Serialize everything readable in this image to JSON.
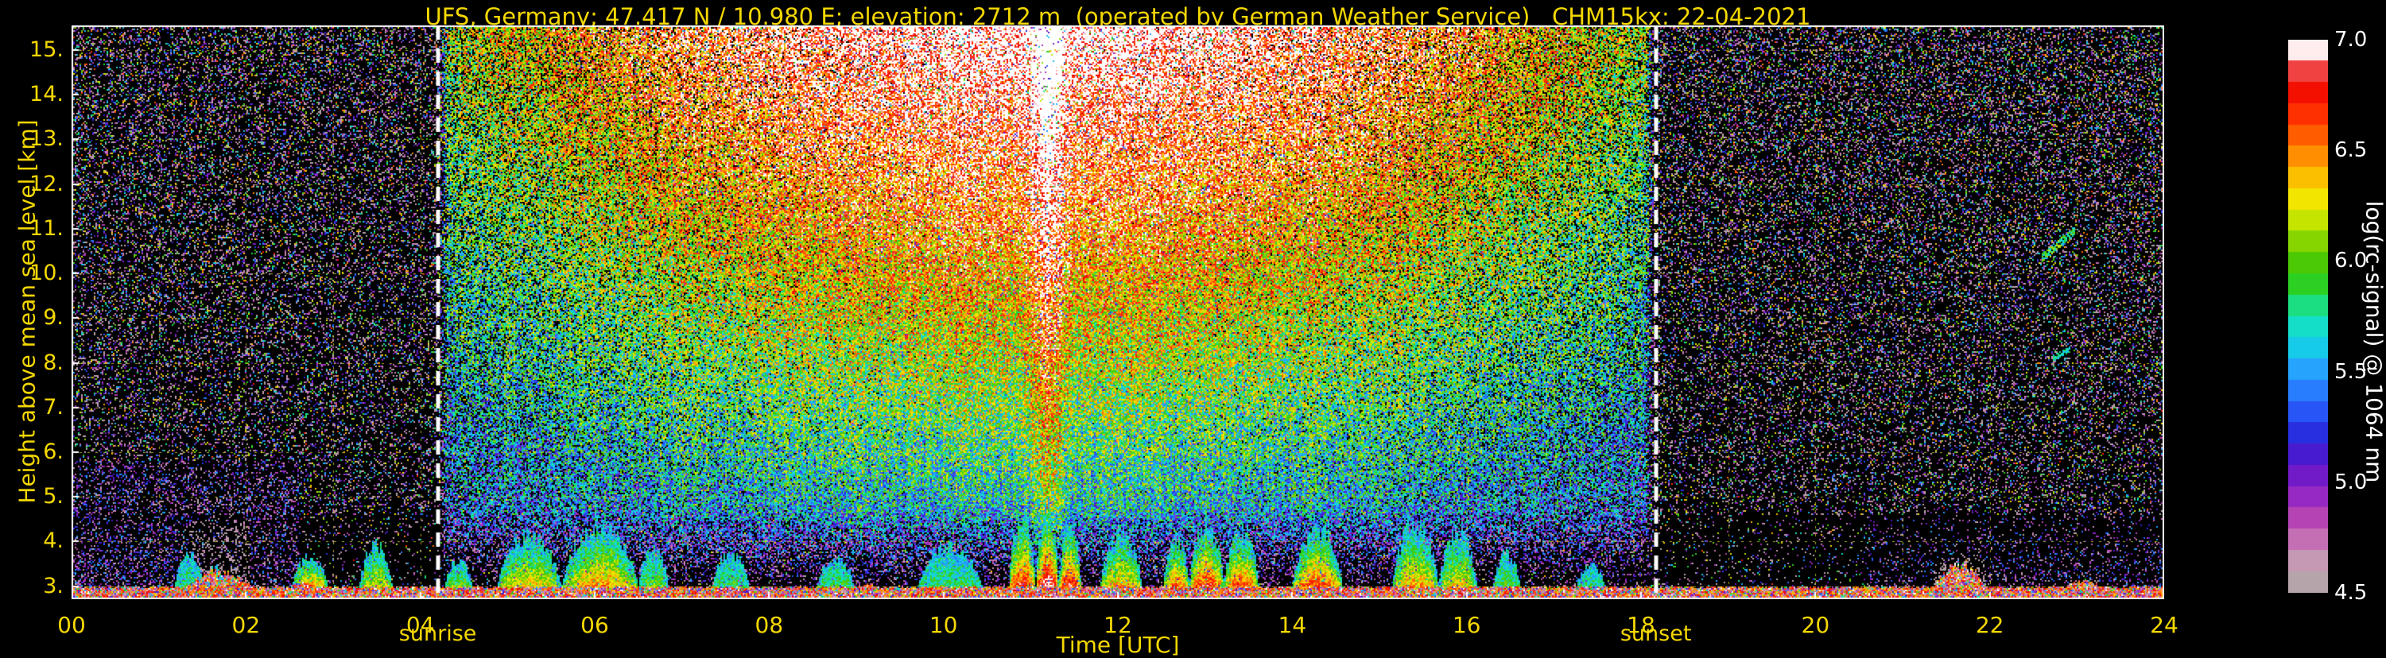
{
  "title": "UFS, Germany; 47.417 N / 10.980 E; elevation: 2712 m  (operated by German Weather Service)   CHM15kx: 22-04-2021",
  "colors": {
    "background": "#000000",
    "axis_text": "#f5d800",
    "grid": "#c9c91f",
    "frame": "#ffffff",
    "sun_line": "#ffffff",
    "colorbar_text": "#ffffff"
  },
  "plot": {
    "x_axis": {
      "label": "Time [UTC]",
      "ticks": [
        "00",
        "02",
        "04",
        "06",
        "08",
        "10",
        "12",
        "14",
        "16",
        "18",
        "20",
        "22",
        "24"
      ],
      "tick_hours": [
        0,
        2,
        4,
        6,
        8,
        10,
        12,
        14,
        16,
        18,
        20,
        22,
        24
      ],
      "range": [
        0,
        24
      ]
    },
    "y_axis": {
      "label": "Height above mean sea level [km]",
      "ticks": [
        "15.",
        "14.",
        "13.",
        "12.",
        "11.",
        "10.",
        "9.",
        "8.",
        "7.",
        "6.",
        "5.",
        "4.",
        "3."
      ],
      "tick_values": [
        15,
        14,
        13,
        12,
        11,
        10,
        9,
        8,
        7,
        6,
        5,
        4,
        3
      ],
      "range": [
        2.71,
        15.55
      ]
    },
    "sunrise": {
      "label": "sunrise",
      "hour": 4.2
    },
    "sunset": {
      "label": "sunset",
      "hour": 18.17
    }
  },
  "colorbar": {
    "label": "log(rc-signal) @ 1064 nm",
    "ticks": [
      "7.0",
      "6.5",
      "6.0",
      "5.5",
      "5.0",
      "4.5"
    ],
    "tick_values": [
      7.0,
      6.5,
      6.0,
      5.5,
      5.0,
      4.5
    ],
    "range": [
      4.5,
      7.0
    ],
    "stops": [
      [
        4.5,
        "#aaa2a2"
      ],
      [
        4.6,
        "#c4a8b4"
      ],
      [
        4.72,
        "#c878b4"
      ],
      [
        4.85,
        "#b43cb4"
      ],
      [
        4.97,
        "#8820c8"
      ],
      [
        5.08,
        "#5a14c8"
      ],
      [
        5.2,
        "#2828dc"
      ],
      [
        5.35,
        "#2864ff"
      ],
      [
        5.5,
        "#28a0ff"
      ],
      [
        5.62,
        "#14d2e6"
      ],
      [
        5.75,
        "#14e6b4"
      ],
      [
        5.88,
        "#28d228"
      ],
      [
        6.0,
        "#50c800"
      ],
      [
        6.12,
        "#a0dc00"
      ],
      [
        6.25,
        "#f0f000"
      ],
      [
        6.4,
        "#ffb400"
      ],
      [
        6.55,
        "#ff6400"
      ],
      [
        6.7,
        "#ff1e00"
      ],
      [
        6.82,
        "#e60000"
      ],
      [
        6.9,
        "#ff9696"
      ],
      [
        6.96,
        "#ffffff"
      ],
      [
        7.05,
        "#ffffff"
      ]
    ]
  },
  "chart_data": {
    "type": "heatmap",
    "title": "UFS, Germany; 47.417 N / 10.980 E; elevation: 2712 m (operated by German Weather Service) CHM15kx: 22-04-2021",
    "xlabel": "Time [UTC]",
    "ylabel": "Height above mean sea level [km]",
    "value_label": "log(rc-signal) @ 1064 nm",
    "value_range": [
      4.5,
      7.0
    ],
    "x_range_hours": [
      0,
      24
    ],
    "y_range_km": [
      2.71,
      15.55
    ],
    "x_tick_hours": [
      0,
      2,
      4,
      6,
      8,
      10,
      12,
      14,
      16,
      18,
      20,
      22,
      24
    ],
    "y_tick_km": [
      3,
      4,
      5,
      6,
      7,
      8,
      9,
      10,
      11,
      12,
      13,
      14,
      15
    ],
    "sunrise_hour": 4.2,
    "sunset_hour": 18.17,
    "solar_noise": {
      "peak_hour": 11.2,
      "band_boost_hours": [
        10.95,
        11.45
      ],
      "description": "dense multicolour solar-background speckle between sunrise and sunset, value increasing with altitude; whitish near plot top around midday, orange-brown 8-13 km, green-cyan below"
    },
    "ground_layer": {
      "top_km": 2.98,
      "description": "bright near-surface echo strip along entire day"
    },
    "ground_bumps": [
      {
        "t0": 1.3,
        "t1": 2.1,
        "top_km": 3.32
      },
      {
        "t0": 2.5,
        "t1": 2.75,
        "top_km": 3.1
      },
      {
        "t0": 9.05,
        "t1": 9.25,
        "top_km": 3.05
      },
      {
        "t0": 21.35,
        "t1": 21.98,
        "top_km": 3.5
      },
      {
        "t0": 22.85,
        "t1": 23.3,
        "top_km": 3.12
      }
    ],
    "cloud_layers": [
      {
        "t0": 1.18,
        "t1": 1.52,
        "base_km": 2.88,
        "top_km": 3.72,
        "peak_log": 5.85
      },
      {
        "t0": 1.52,
        "t1": 1.78,
        "base_km": 2.88,
        "top_km": 3.4,
        "peak_log": 5.4
      },
      {
        "t0": 2.52,
        "t1": 2.95,
        "base_km": 2.88,
        "top_km": 3.62,
        "peak_log": 6.75
      },
      {
        "t0": 3.3,
        "t1": 3.68,
        "base_km": 2.88,
        "top_km": 3.9,
        "peak_log": 6.35
      },
      {
        "t0": 4.28,
        "t1": 4.6,
        "base_km": 2.88,
        "top_km": 3.55,
        "peak_log": 6.15
      },
      {
        "t0": 4.88,
        "t1": 5.62,
        "base_km": 2.88,
        "top_km": 4.1,
        "peak_log": 6.45
      },
      {
        "t0": 5.62,
        "t1": 6.5,
        "base_km": 2.88,
        "top_km": 4.3,
        "peak_log": 6.6
      },
      {
        "t0": 6.5,
        "t1": 6.85,
        "base_km": 2.88,
        "top_km": 3.8,
        "peak_log": 6.1
      },
      {
        "t0": 7.35,
        "t1": 7.78,
        "base_km": 2.88,
        "top_km": 3.7,
        "peak_log": 5.95
      },
      {
        "t0": 8.55,
        "t1": 8.98,
        "base_km": 2.88,
        "top_km": 3.6,
        "peak_log": 6.0
      },
      {
        "t0": 9.7,
        "t1": 10.45,
        "base_km": 2.88,
        "top_km": 3.85,
        "peak_log": 5.9
      },
      {
        "t0": 10.75,
        "t1": 11.06,
        "base_km": 2.88,
        "top_km": 4.5,
        "peak_log": 6.9
      },
      {
        "t0": 11.06,
        "t1": 11.32,
        "base_km": 2.88,
        "top_km": 4.68,
        "peak_log": 7.15
      },
      {
        "t0": 11.32,
        "t1": 11.58,
        "base_km": 2.88,
        "top_km": 4.4,
        "peak_log": 6.95
      },
      {
        "t0": 11.8,
        "t1": 12.28,
        "base_km": 2.88,
        "top_km": 4.15,
        "peak_log": 6.55
      },
      {
        "t0": 12.52,
        "t1": 12.82,
        "base_km": 2.88,
        "top_km": 4.05,
        "peak_log": 6.7
      },
      {
        "t0": 12.82,
        "t1": 13.22,
        "base_km": 2.88,
        "top_km": 4.35,
        "peak_log": 6.9
      },
      {
        "t0": 13.22,
        "t1": 13.62,
        "base_km": 2.88,
        "top_km": 4.2,
        "peak_log": 6.8
      },
      {
        "t0": 14.0,
        "t1": 14.58,
        "base_km": 2.88,
        "top_km": 4.25,
        "peak_log": 6.8
      },
      {
        "t0": 15.15,
        "t1": 15.68,
        "base_km": 2.88,
        "top_km": 4.3,
        "peak_log": 6.55
      },
      {
        "t0": 15.68,
        "t1": 16.12,
        "base_km": 2.88,
        "top_km": 4.15,
        "peak_log": 6.4
      },
      {
        "t0": 16.3,
        "t1": 16.62,
        "base_km": 2.88,
        "top_km": 3.7,
        "peak_log": 6.0
      },
      {
        "t0": 17.25,
        "t1": 17.6,
        "base_km": 2.88,
        "top_km": 3.45,
        "peak_log": 5.85
      }
    ],
    "contrail_streaks": [
      {
        "t0": 22.6,
        "t1": 22.97,
        "h0_km": 10.35,
        "h1_km": 10.95,
        "half_width_km": 0.1,
        "peak_log": 6.25
      },
      {
        "t0": 22.72,
        "t1": 22.92,
        "h0_km": 8.1,
        "h1_km": 8.3,
        "half_width_km": 0.07,
        "peak_log": 5.9
      }
    ],
    "night_haze": [
      {
        "t0": 0.0,
        "t1": 2.6,
        "h0": 2.9,
        "h1": 5.8,
        "strength": 0.28
      },
      {
        "t0": 20.6,
        "t1": 24.0,
        "h0": 2.9,
        "h1": 4.6,
        "strength": 0.14
      }
    ],
    "grey_plumes": [
      {
        "t0": 1.35,
        "t1": 2.05,
        "h1": 5.5,
        "strength": 0.32
      },
      {
        "t0": 21.35,
        "t1": 21.95,
        "h1": 3.8,
        "strength": 0.5
      },
      {
        "t0": 22.9,
        "t1": 23.25,
        "h1": 3.3,
        "strength": 0.4
      }
    ]
  }
}
